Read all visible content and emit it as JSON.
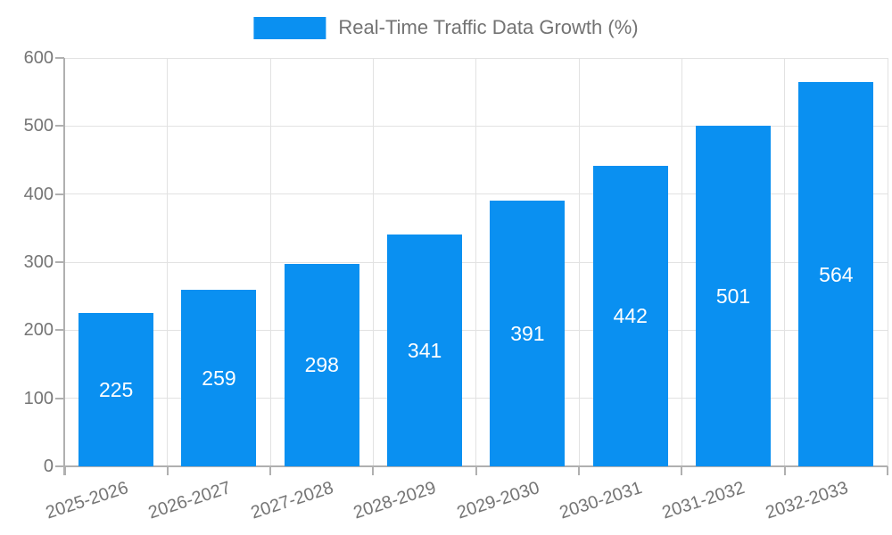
{
  "chart_data": {
    "type": "bar",
    "title": "Real-Time Traffic Data Growth (%)",
    "legend_entries": [
      "Real-Time Traffic Data Growth (%)"
    ],
    "legend_position": "top",
    "categories": [
      "2025-2026",
      "2026-2027",
      "2027-2028",
      "2028-2029",
      "2029-2030",
      "2030-2031",
      "2031-2032",
      "2032-2033"
    ],
    "values": [
      225,
      259,
      298,
      341,
      391,
      442,
      501,
      564
    ],
    "bar_value_labels": [
      "225",
      "259",
      "298",
      "341",
      "391",
      "442",
      "501",
      "564"
    ],
    "xlabel": "",
    "ylabel": "",
    "ylim": [
      0,
      600
    ],
    "yticks": [
      0,
      100,
      200,
      300,
      400,
      500,
      600
    ],
    "grid": true,
    "x_label_rotation_deg": -18,
    "colors": {
      "bar": "#0a90f1",
      "bar_value_text": "#ffffff",
      "axis_text": "#757575",
      "legend_text": "#737373",
      "gridline": "#e2e2e2",
      "axis_line": "#b0b0b0",
      "background": "#ffffff"
    }
  }
}
